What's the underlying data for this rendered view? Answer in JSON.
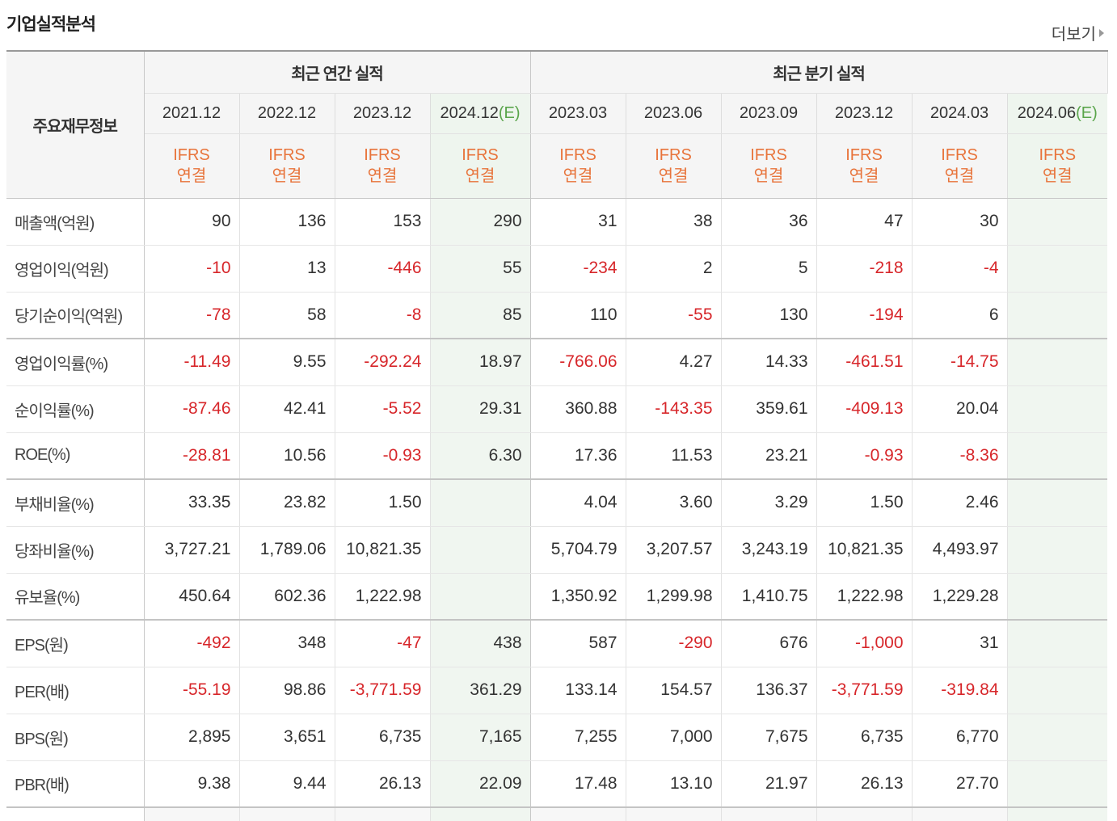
{
  "title": "기업실적분석",
  "more_label": "더보기",
  "header": {
    "label_col": "주요재무정보",
    "annual_group": "최근 연간 실적",
    "quarter_group": "최근 분기 실적",
    "annual_periods": [
      "2021.12",
      "2022.12",
      "2023.12",
      "2024.12"
    ],
    "annual_est_marks": [
      "",
      "",
      "",
      "(E)"
    ],
    "quarter_periods": [
      "2023.03",
      "2023.06",
      "2023.09",
      "2023.12",
      "2024.03",
      "2024.06"
    ],
    "quarter_est_marks": [
      "",
      "",
      "",
      "",
      "",
      "(E)"
    ],
    "ifrs_line1": "IFRS",
    "ifrs_line2": "연결"
  },
  "rows": [
    {
      "label": "매출액(억원)",
      "values": [
        "90",
        "136",
        "153",
        "290",
        "31",
        "38",
        "36",
        "47",
        "30",
        ""
      ]
    },
    {
      "label": "영업이익(억원)",
      "values": [
        "-10",
        "13",
        "-446",
        "55",
        "-234",
        "2",
        "5",
        "-218",
        "-4",
        ""
      ]
    },
    {
      "label": "당기순이익(억원)",
      "values": [
        "-78",
        "58",
        "-8",
        "85",
        "110",
        "-55",
        "130",
        "-194",
        "6",
        ""
      ],
      "group_end": true
    },
    {
      "label": "영업이익률(%)",
      "values": [
        "-11.49",
        "9.55",
        "-292.24",
        "18.97",
        "-766.06",
        "4.27",
        "14.33",
        "-461.51",
        "-14.75",
        ""
      ]
    },
    {
      "label": "순이익률(%)",
      "values": [
        "-87.46",
        "42.41",
        "-5.52",
        "29.31",
        "360.88",
        "-143.35",
        "359.61",
        "-409.13",
        "20.04",
        ""
      ]
    },
    {
      "label": "ROE(%)",
      "values": [
        "-28.81",
        "10.56",
        "-0.93",
        "6.30",
        "17.36",
        "11.53",
        "23.21",
        "-0.93",
        "-8.36",
        ""
      ],
      "group_end": true
    },
    {
      "label": "부채비율(%)",
      "values": [
        "33.35",
        "23.82",
        "1.50",
        "",
        "4.04",
        "3.60",
        "3.29",
        "1.50",
        "2.46",
        ""
      ]
    },
    {
      "label": "당좌비율(%)",
      "values": [
        "3,727.21",
        "1,789.06",
        "10,821.35",
        "",
        "5,704.79",
        "3,207.57",
        "3,243.19",
        "10,821.35",
        "4,493.97",
        ""
      ]
    },
    {
      "label": "유보율(%)",
      "values": [
        "450.64",
        "602.36",
        "1,222.98",
        "",
        "1,350.92",
        "1,299.98",
        "1,410.75",
        "1,222.98",
        "1,229.28",
        ""
      ],
      "group_end": true
    },
    {
      "label": "EPS(원)",
      "values": [
        "-492",
        "348",
        "-47",
        "438",
        "587",
        "-290",
        "676",
        "-1,000",
        "31",
        ""
      ]
    },
    {
      "label": "PER(배)",
      "values": [
        "-55.19",
        "98.86",
        "-3,771.59",
        "361.29",
        "133.14",
        "154.57",
        "136.37",
        "-3,771.59",
        "-319.84",
        ""
      ]
    },
    {
      "label": "BPS(원)",
      "values": [
        "2,895",
        "3,651",
        "6,735",
        "7,165",
        "7,255",
        "7,000",
        "7,675",
        "6,735",
        "6,770",
        ""
      ]
    },
    {
      "label": "PBR(배)",
      "values": [
        "9.38",
        "9.44",
        "26.13",
        "22.09",
        "17.48",
        "13.10",
        "21.97",
        "26.13",
        "27.70",
        ""
      ],
      "group_end": true
    }
  ],
  "colors": {
    "negative": "#d7262a",
    "ifrs": "#e8743b",
    "estimate_mark": "#5aa54b",
    "estimate_bg": "#f0f6f0"
  }
}
